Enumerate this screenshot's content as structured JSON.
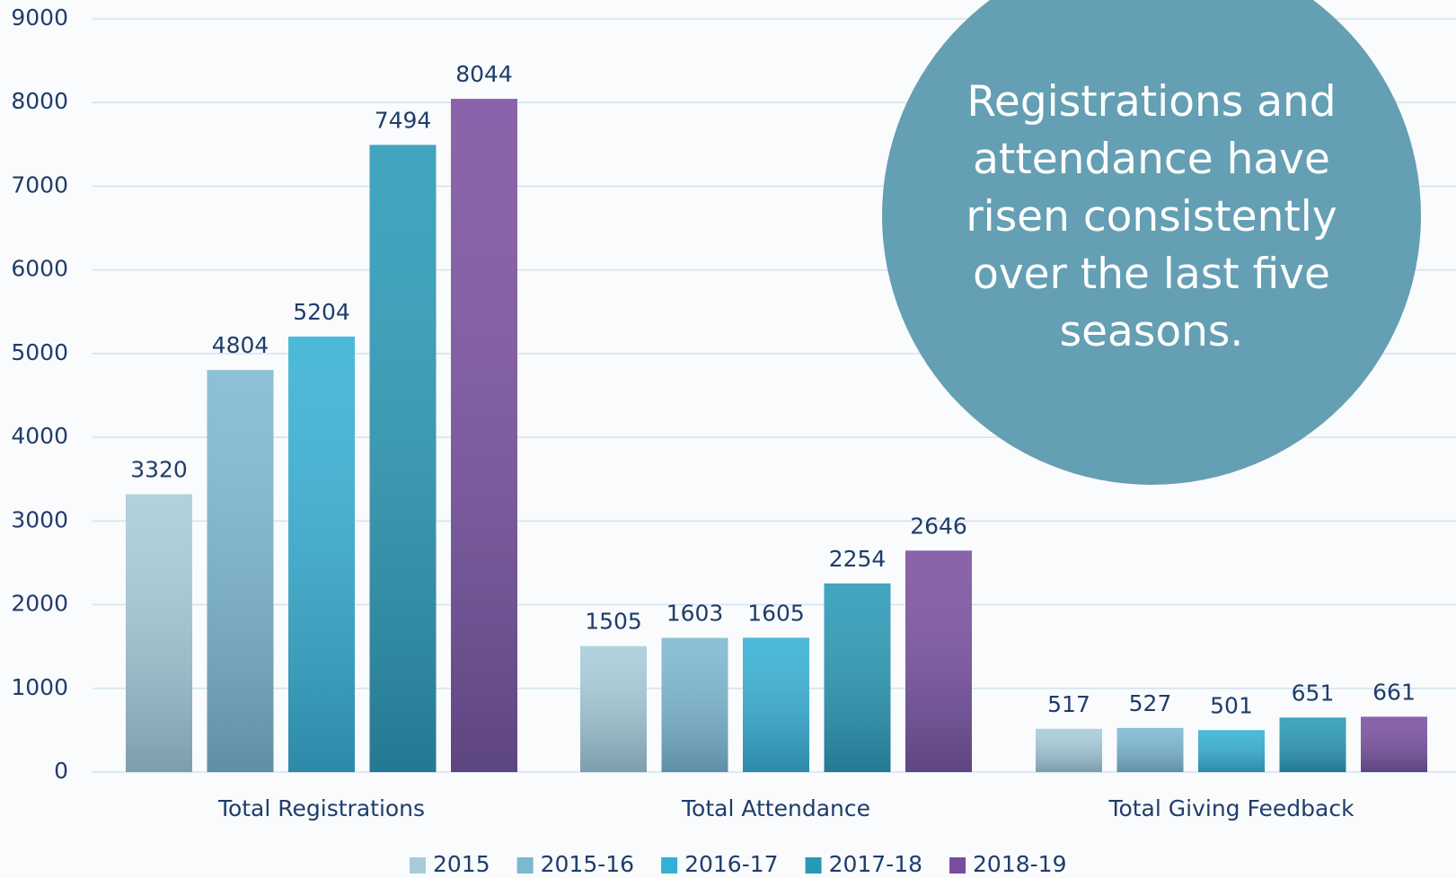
{
  "chart_data": {
    "type": "bar",
    "categories": [
      "Total Registrations",
      "Total Attendance",
      "Total Giving Feedback"
    ],
    "series": [
      {
        "name": "2015",
        "color": "#a6ccd9",
        "values": [
          3320,
          1505,
          517
        ]
      },
      {
        "name": "2015-16",
        "color": "#7cb8d0",
        "values": [
          4804,
          1603,
          527
        ]
      },
      {
        "name": "2016-17",
        "color": "#34b0d4",
        "values": [
          5204,
          1605,
          501
        ]
      },
      {
        "name": "2017-18",
        "color": "#2898b5",
        "values": [
          7494,
          2254,
          651
        ]
      },
      {
        "name": "2018-19",
        "color": "#7a4e9e",
        "values": [
          8044,
          2646,
          661
        ]
      }
    ],
    "ylim": [
      0,
      9000
    ],
    "yticks": [
      0,
      1000,
      2000,
      3000,
      4000,
      5000,
      6000,
      7000,
      8000,
      9000
    ],
    "grid": true,
    "legend": "bottom",
    "annotation": "Registrations and attendance have risen consistently over the last five seasons."
  }
}
